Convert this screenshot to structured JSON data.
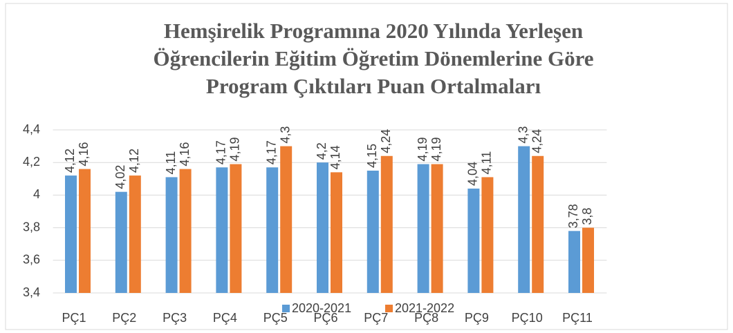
{
  "chart_data": {
    "type": "bar",
    "title": [
      "Hemşirelik Programına 2020 Yılında Yerleşen",
      "Öğrencilerin Eğitim Öğretim Dönemlerine Göre",
      "Program Çıktıları Puan Ortalmaları"
    ],
    "categories": [
      "PÇ1",
      "PÇ2",
      "PÇ3",
      "PÇ4",
      "PÇ5",
      "PÇ6",
      "PÇ7",
      "PÇ8",
      "PÇ9",
      "PÇ10",
      "PÇ11"
    ],
    "series": [
      {
        "name": "2020-2021",
        "color": "#5b9bd5",
        "values": [
          4.12,
          4.02,
          4.11,
          4.17,
          4.17,
          4.2,
          4.15,
          4.19,
          4.04,
          4.3,
          3.78
        ],
        "value_labels": [
          "4,12",
          "4,02",
          "4,11",
          "4,17",
          "4,17",
          "4,2",
          "4,15",
          "4,19",
          "4,04",
          "4,3",
          "3,78"
        ]
      },
      {
        "name": "2021-2022",
        "color": "#ed7d31",
        "values": [
          4.16,
          4.12,
          4.16,
          4.19,
          4.3,
          4.14,
          4.24,
          4.19,
          4.11,
          4.24,
          3.8
        ],
        "value_labels": [
          "4,16",
          "4,12",
          "4,16",
          "4,19",
          "4,3",
          "4,14",
          "4,24",
          "4,19",
          "4,11",
          "4,24",
          "3,8"
        ]
      }
    ],
    "ylim": [
      3.4,
      4.4
    ],
    "yticks": [
      {
        "value": 3.4,
        "label": "3,4"
      },
      {
        "value": 3.6,
        "label": "3,6"
      },
      {
        "value": 3.8,
        "label": "3,8"
      },
      4,
      {
        "value": 4.2,
        "label": "4,2"
      },
      {
        "value": 4.4,
        "label": "4,4"
      }
    ],
    "grid": true,
    "legend": "bottom"
  }
}
